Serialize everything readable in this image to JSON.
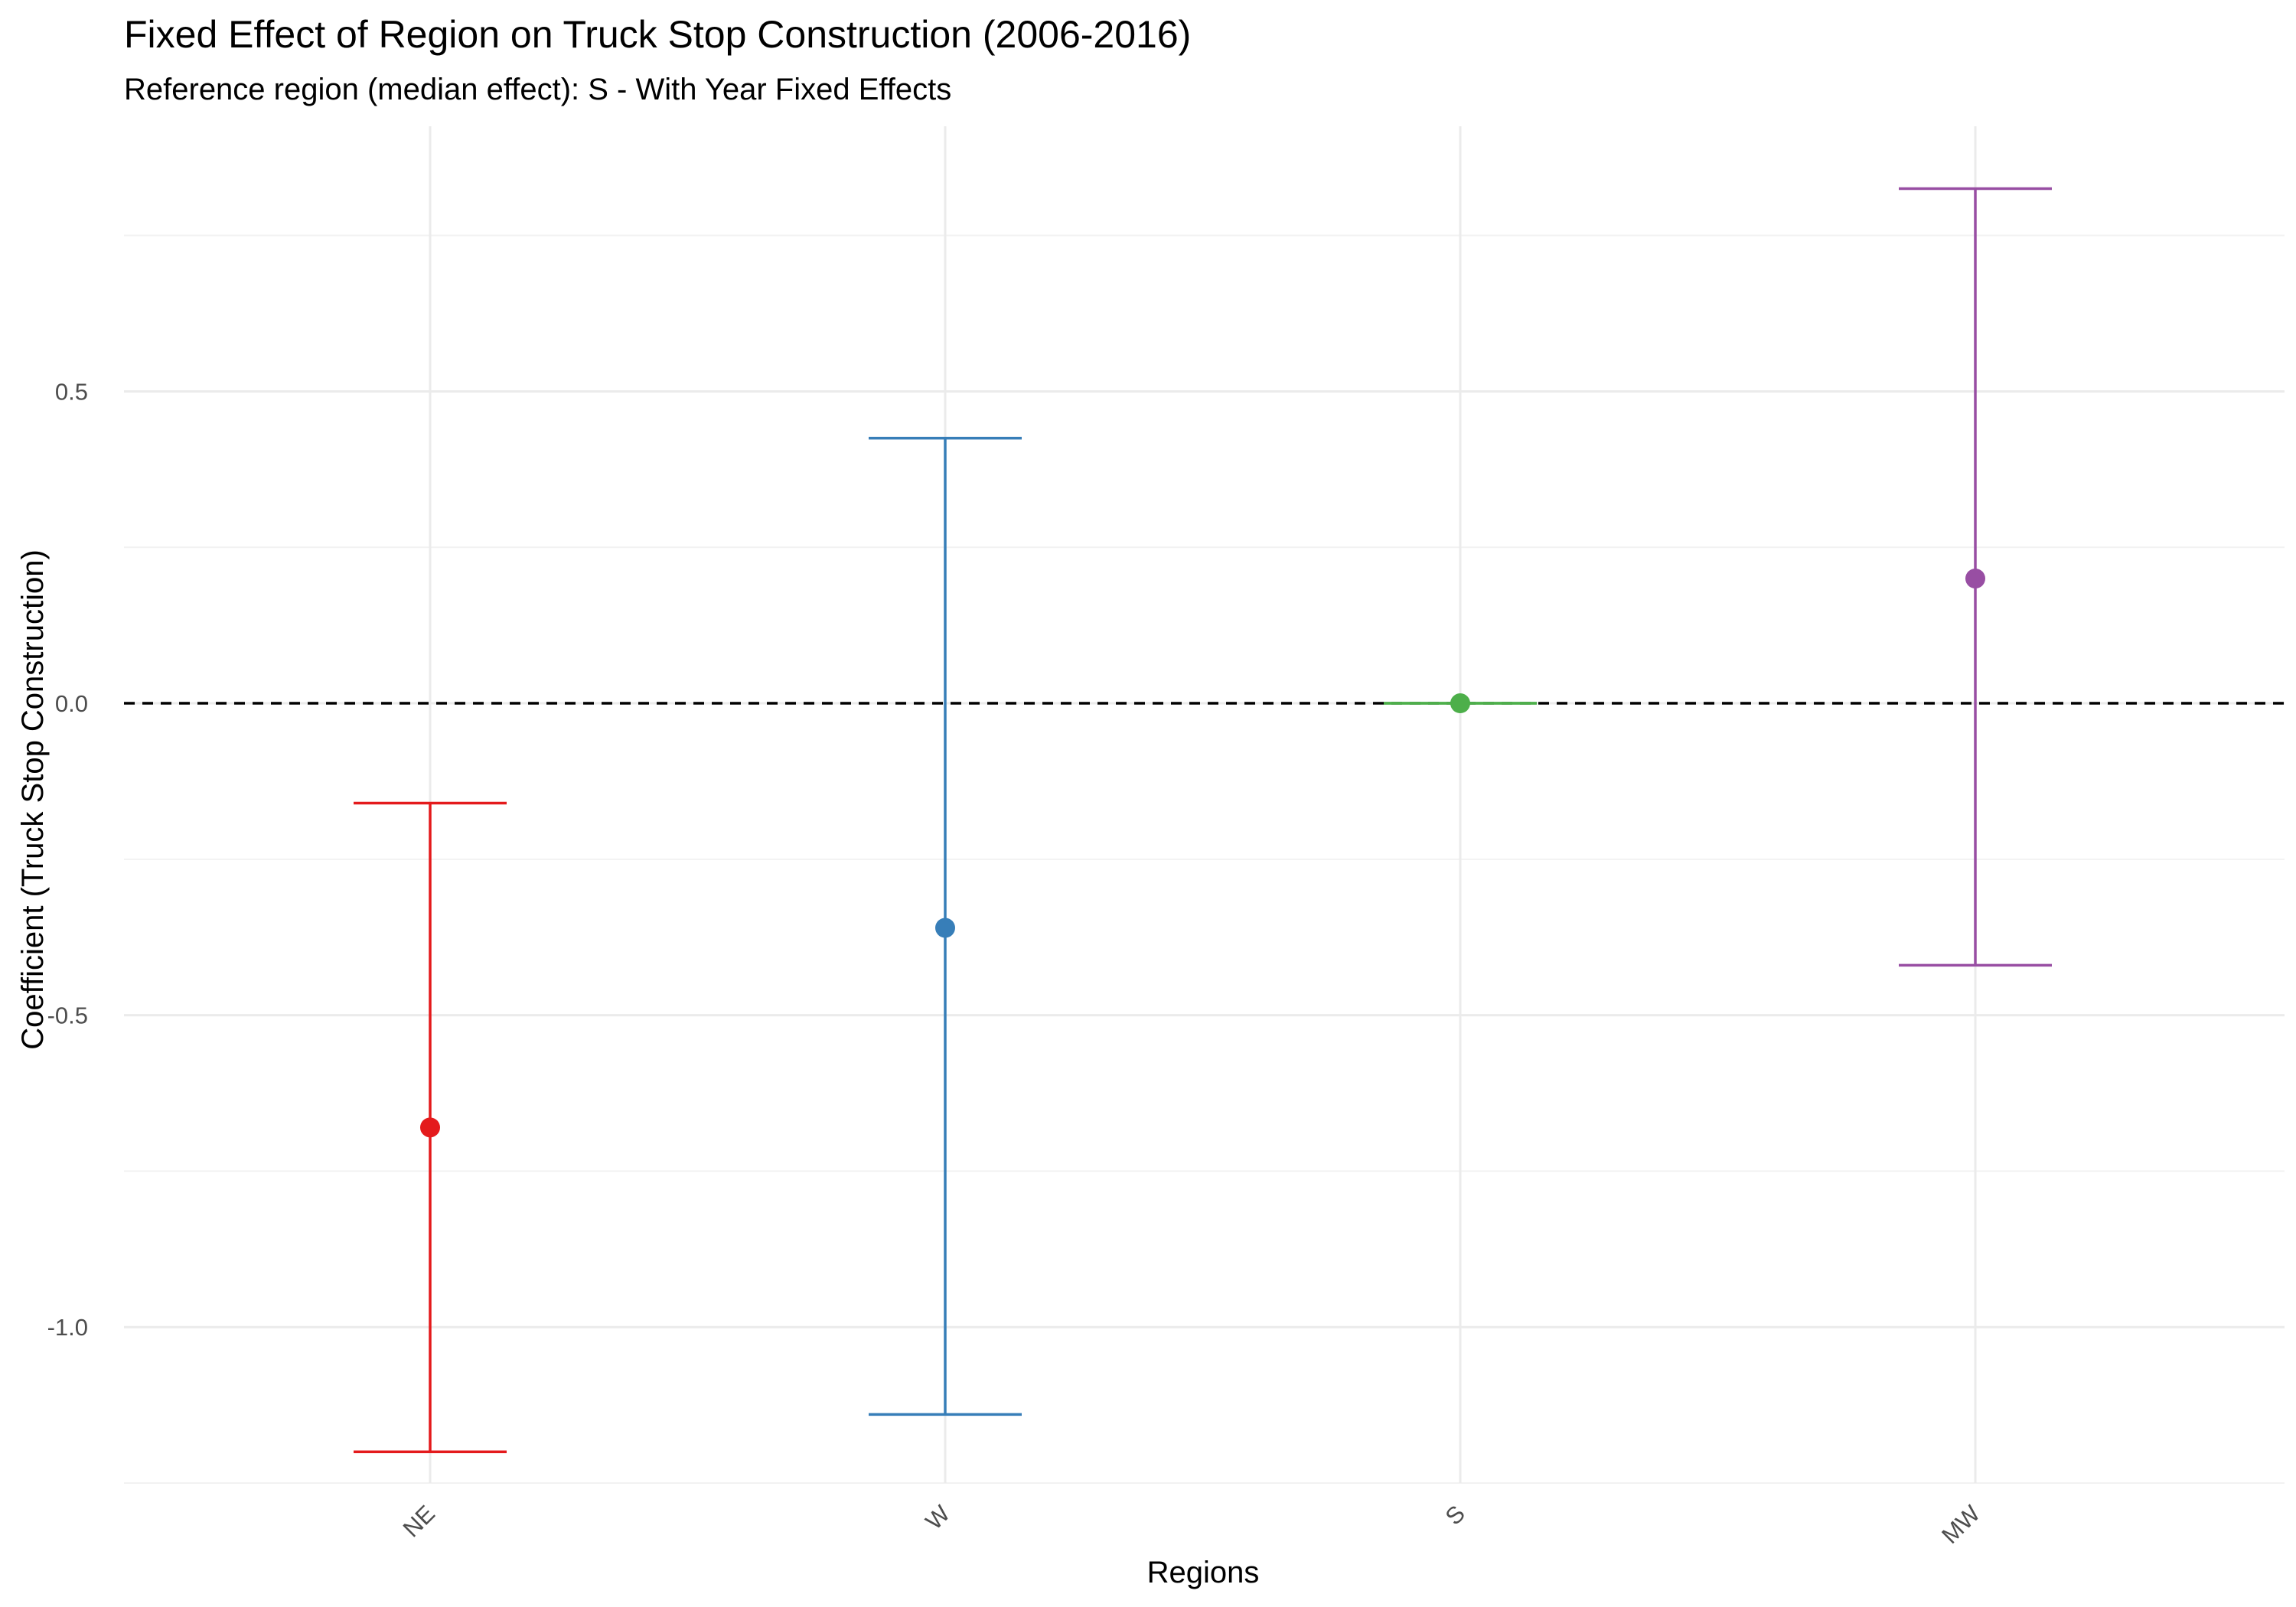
{
  "chart_data": {
    "type": "scatter",
    "subtype": "point-with-errorbars",
    "title": "Fixed Effect of Region on Truck Stop Construction (2006-2016)",
    "subtitle": "Reference region (median effect): S - With Year Fixed Effects",
    "xlabel": "Regions",
    "ylabel": "Coefficient (Truck Stop Construction)",
    "categories": [
      "NE",
      "W",
      "S",
      "MW"
    ],
    "series": [
      {
        "category": "NE",
        "estimate": -0.68,
        "lower": -1.2,
        "upper": -0.16,
        "color": "#E41A1C"
      },
      {
        "category": "W",
        "estimate": -0.36,
        "lower": -1.14,
        "upper": 0.425,
        "color": "#377EB8"
      },
      {
        "category": "S",
        "estimate": 0.0,
        "lower": 0.0,
        "upper": 0.0,
        "color": "#4DAF4A"
      },
      {
        "category": "MW",
        "estimate": 0.2,
        "lower": -0.42,
        "upper": 0.825,
        "color": "#984EA3"
      }
    ],
    "yticks": [
      -1.0,
      -0.5,
      0.0,
      0.5
    ],
    "ytick_labels": [
      "-1.0",
      "-0.5",
      "0.0",
      "0.5"
    ],
    "ylim": [
      -1.25,
      0.925
    ],
    "reference_line": {
      "y": 0,
      "style": "dashed",
      "color": "#000000"
    },
    "grid": true,
    "legend": "none",
    "xtick_rotation_deg": 45
  }
}
